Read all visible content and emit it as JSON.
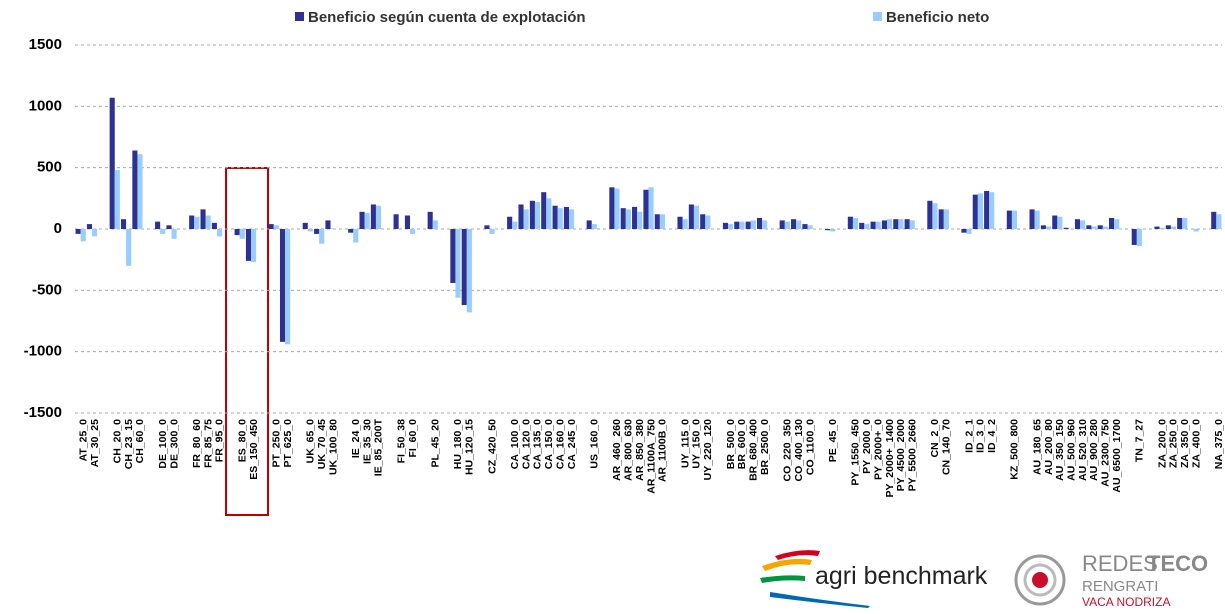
{
  "chart_data": {
    "type": "bar",
    "categories": [
      "AT_25_0",
      "AT_30_25",
      null,
      "CH_20_0",
      "CH_23_15",
      "CH_60_0",
      null,
      "DE_100_0",
      "DE_300_0",
      null,
      "FR_80_60",
      "FR_85_75",
      "FR_95_0",
      null,
      "ES_80_0",
      "ES_150_450",
      null,
      "PT_250_0",
      "PT_625_0",
      null,
      "UK_65_0",
      "UK_70_45",
      "UK_100_80",
      null,
      "IE_24_0",
      "IE_35_30",
      "IE_85_200T",
      null,
      "FI_50_38",
      "FI_60_0",
      null,
      "PL_45_20",
      null,
      "HU_180_0",
      "HU_120_15",
      null,
      "CZ_420_50",
      null,
      "CA_100_0",
      "CA_120_0",
      "CA_135_0",
      "CA_150_0",
      "CA_160_0",
      "CA_245_0",
      null,
      "US_160_0",
      null,
      "AR_460_260",
      "AR_800_630",
      "AR_850_380",
      "AR_1100A_750",
      "AR_1100B_0",
      null,
      "UY_115_0",
      "UY_150_0",
      "UY_220_120",
      null,
      "BR_500_0",
      "BR_600_0",
      "BR_680_400",
      "BR_2500_0",
      null,
      "CO_220_350",
      "CO_400_130",
      "CO_1100_0",
      null,
      "PE_45_0",
      null,
      "PY_1550_450",
      "PY_2000_0",
      "PY_2000+_0",
      "PY_2000+_1400",
      "PY_4500_2000",
      "PY_5500_2660",
      null,
      "CN_2_0",
      "CN_140_70",
      null,
      "ID_2_1",
      "ID_3_0",
      "ID_4_2",
      null,
      "KZ_500_800",
      null,
      "AU_180_65",
      "AU_200_80",
      "AU_350_150",
      "AU_500_960",
      "AU_520_310",
      "AU_900_280",
      "AU_2300_750",
      "AU_6500_1700",
      null,
      "TN_7_27",
      null,
      "ZA_200_0",
      "ZA_250_0",
      "ZA_350_0",
      "ZA_400_0",
      null,
      "NA_375_0"
    ],
    "series": [
      {
        "name": "Beneficio según cuenta de explotación",
        "color": "#2e3192",
        "values": [
          -40,
          40,
          null,
          1070,
          80,
          640,
          null,
          60,
          30,
          null,
          110,
          160,
          50,
          null,
          -50,
          -260,
          null,
          40,
          -920,
          null,
          50,
          -40,
          70,
          null,
          -30,
          140,
          200,
          null,
          120,
          110,
          null,
          140,
          null,
          -440,
          -620,
          null,
          30,
          null,
          100,
          200,
          230,
          300,
          190,
          180,
          null,
          70,
          null,
          340,
          170,
          180,
          320,
          120,
          null,
          100,
          200,
          120,
          null,
          50,
          60,
          60,
          90,
          null,
          70,
          80,
          40,
          null,
          -10,
          null,
          100,
          50,
          60,
          70,
          80,
          80,
          null,
          230,
          160,
          null,
          -30,
          280,
          310,
          null,
          150,
          null,
          160,
          30,
          110,
          10,
          80,
          30,
          30,
          90,
          null,
          -130,
          null,
          20,
          30,
          90,
          0,
          null,
          140
        ]
      },
      {
        "name": "Beneficio neto",
        "color": "#99ccff",
        "values": [
          -100,
          -60,
          null,
          480,
          -300,
          610,
          null,
          -40,
          -80,
          null,
          100,
          110,
          -60,
          null,
          -80,
          -270,
          null,
          30,
          -940,
          null,
          -20,
          -120,
          5,
          null,
          -110,
          130,
          190,
          null,
          0,
          -40,
          null,
          70,
          null,
          -560,
          -680,
          null,
          -40,
          null,
          60,
          160,
          220,
          250,
          170,
          160,
          null,
          40,
          null,
          330,
          160,
          140,
          340,
          120,
          null,
          80,
          190,
          110,
          null,
          40,
          60,
          70,
          70,
          null,
          60,
          70,
          30,
          null,
          -20,
          null,
          90,
          40,
          60,
          80,
          80,
          70,
          null,
          210,
          160,
          null,
          -40,
          290,
          300,
          null,
          150,
          null,
          150,
          20,
          100,
          0,
          70,
          20,
          20,
          80,
          null,
          -140,
          null,
          10,
          20,
          90,
          -20,
          null,
          120
        ]
      }
    ],
    "ylim": [
      -1500,
      1500
    ],
    "yticks": [
      -1500,
      -1000,
      -500,
      0,
      500,
      1000,
      1500
    ],
    "grid": true
  },
  "logos": {
    "agri": "agri benchmark",
    "redes": "REDES",
    "teco": "TECO",
    "rengrati": "RENGRATI",
    "vaca": "VACA NODRIZA"
  }
}
